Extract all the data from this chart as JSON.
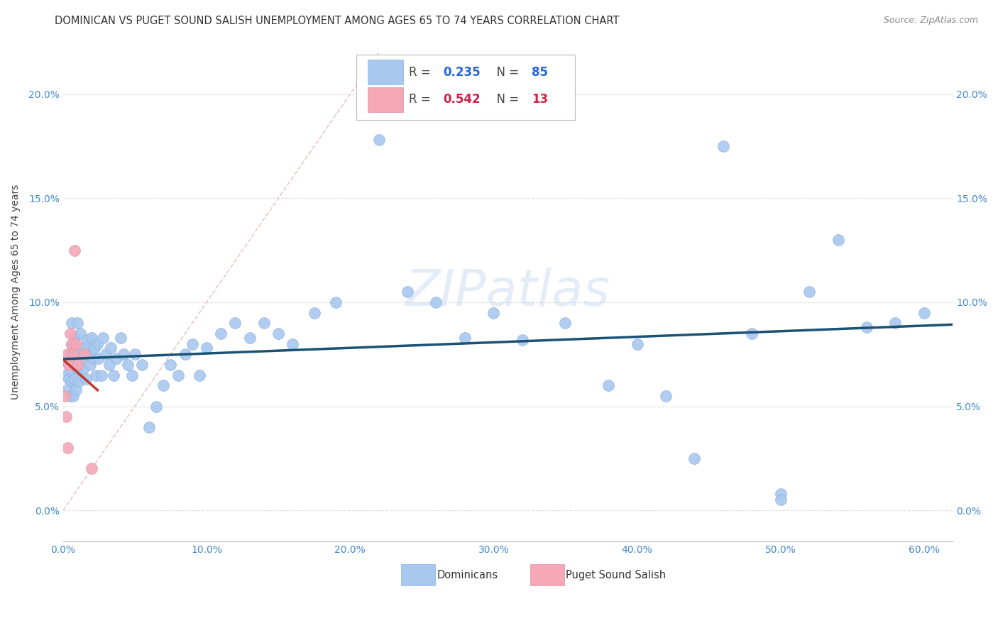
{
  "title": "DOMINICAN VS PUGET SOUND SALISH UNEMPLOYMENT AMONG AGES 65 TO 74 YEARS CORRELATION CHART",
  "source": "Source: ZipAtlas.com",
  "ylabel": "Unemployment Among Ages 65 to 74 years",
  "xlim": [
    0.0,
    0.62
  ],
  "ylim": [
    -0.015,
    0.225
  ],
  "xticks": [
    0.0,
    0.1,
    0.2,
    0.3,
    0.4,
    0.5,
    0.6
  ],
  "xticklabels": [
    "0.0%",
    "10.0%",
    "20.0%",
    "30.0%",
    "40.0%",
    "50.0%",
    "60.0%"
  ],
  "yticks": [
    0.0,
    0.05,
    0.1,
    0.15,
    0.2
  ],
  "yticklabels": [
    "0.0%",
    "5.0%",
    "10.0%",
    "15.0%",
    "20.0%"
  ],
  "blue_color": "#a8c8f0",
  "pink_color": "#f4a8b8",
  "blue_line_color": "#1a5276",
  "pink_line_color": "#c0392b",
  "diagonal_color": "#e8c0c0",
  "watermark": "ZIPatlas",
  "background_color": "#ffffff",
  "title_fontsize": 10.5,
  "axis_label_fontsize": 10,
  "tick_fontsize": 10,
  "source_fontsize": 9,
  "blue_x": [
    0.002,
    0.003,
    0.003,
    0.004,
    0.004,
    0.005,
    0.005,
    0.005,
    0.006,
    0.006,
    0.006,
    0.007,
    0.007,
    0.008,
    0.008,
    0.009,
    0.009,
    0.01,
    0.01,
    0.011,
    0.011,
    0.012,
    0.013,
    0.014,
    0.015,
    0.016,
    0.017,
    0.018,
    0.019,
    0.02,
    0.021,
    0.022,
    0.023,
    0.024,
    0.025,
    0.027,
    0.028,
    0.03,
    0.032,
    0.033,
    0.035,
    0.037,
    0.04,
    0.042,
    0.045,
    0.048,
    0.05,
    0.055,
    0.06,
    0.065,
    0.07,
    0.075,
    0.08,
    0.085,
    0.09,
    0.095,
    0.1,
    0.11,
    0.12,
    0.13,
    0.14,
    0.15,
    0.16,
    0.175,
    0.19,
    0.22,
    0.24,
    0.26,
    0.28,
    0.3,
    0.32,
    0.35,
    0.38,
    0.42,
    0.46,
    0.5,
    0.52,
    0.54,
    0.56,
    0.58,
    0.6,
    0.4,
    0.44,
    0.48,
    0.5
  ],
  "blue_y": [
    0.065,
    0.072,
    0.058,
    0.07,
    0.063,
    0.075,
    0.055,
    0.068,
    0.08,
    0.09,
    0.062,
    0.072,
    0.055,
    0.083,
    0.063,
    0.075,
    0.058,
    0.068,
    0.09,
    0.078,
    0.062,
    0.085,
    0.073,
    0.068,
    0.078,
    0.063,
    0.082,
    0.075,
    0.07,
    0.083,
    0.073,
    0.078,
    0.065,
    0.08,
    0.073,
    0.065,
    0.083,
    0.075,
    0.07,
    0.078,
    0.065,
    0.073,
    0.083,
    0.075,
    0.07,
    0.065,
    0.075,
    0.07,
    0.04,
    0.05,
    0.06,
    0.07,
    0.065,
    0.075,
    0.08,
    0.065,
    0.078,
    0.085,
    0.09,
    0.083,
    0.09,
    0.085,
    0.08,
    0.095,
    0.1,
    0.178,
    0.105,
    0.1,
    0.083,
    0.095,
    0.082,
    0.09,
    0.06,
    0.055,
    0.175,
    0.008,
    0.105,
    0.13,
    0.088,
    0.09,
    0.095,
    0.08,
    0.025,
    0.085,
    0.005
  ],
  "pink_x": [
    0.001,
    0.002,
    0.003,
    0.003,
    0.004,
    0.005,
    0.006,
    0.007,
    0.008,
    0.009,
    0.01,
    0.015,
    0.02
  ],
  "pink_y": [
    0.055,
    0.045,
    0.03,
    0.075,
    0.07,
    0.085,
    0.08,
    0.075,
    0.125,
    0.08,
    0.07,
    0.075,
    0.02
  ]
}
